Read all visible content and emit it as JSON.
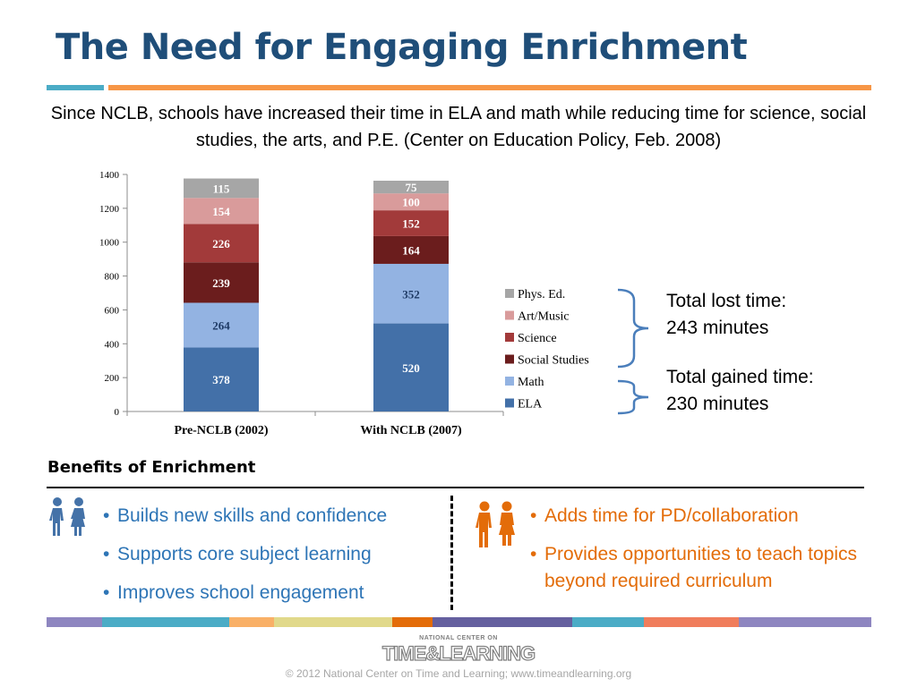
{
  "slide": {
    "title": "The Need for Engaging Enrichment",
    "subtitle": "Since NCLB, schools have increased their time in ELA and math while reducing time for science, social studies, the arts, and P.E. (Center on Education Policy, Feb. 2008)"
  },
  "chart_data": {
    "type": "bar",
    "stacked": true,
    "categories": [
      "Pre-NCLB (2002)",
      "With NCLB (2007)"
    ],
    "series": [
      {
        "name": "ELA",
        "values": [
          378,
          520
        ],
        "color": "#4370a8"
      },
      {
        "name": "Math",
        "values": [
          264,
          352
        ],
        "color": "#93b3e2"
      },
      {
        "name": "Social Studies",
        "values": [
          239,
          164
        ],
        "color": "#6b1d1d"
      },
      {
        "name": "Science",
        "values": [
          226,
          152
        ],
        "color": "#a23a3a"
      },
      {
        "name": "Art/Music",
        "values": [
          154,
          100
        ],
        "color": "#d99b9b"
      },
      {
        "name": "Phys. Ed.",
        "values": [
          115,
          75
        ],
        "color": "#a6a6a6"
      }
    ],
    "ylim": [
      0,
      1400
    ],
    "yticks": [
      0,
      200,
      400,
      600,
      800,
      1000,
      1200,
      1400
    ],
    "title": "",
    "xlabel": "",
    "ylabel": "",
    "legend_position": "right",
    "legend_order": [
      "Phys. Ed.",
      "Art/Music",
      "Science",
      "Social Studies",
      "Math",
      "ELA"
    ],
    "grid": false
  },
  "annotations": {
    "lost": {
      "line1": "Total lost time:",
      "line2": "243 minutes"
    },
    "gained": {
      "line1": "Total gained time:",
      "line2": "230 minutes"
    },
    "bracket_color": "#4a7ebb"
  },
  "benefits": {
    "heading": "Benefits of Enrichment",
    "students_icon": "students-icon",
    "teachers_icon": "teachers-icon",
    "students": [
      "Builds new skills and confidence",
      "Supports core subject learning",
      "Improves school engagement"
    ],
    "teachers": [
      "Adds time for PD/collaboration",
      "Provides opportunities to teach topics beyond required curriculum"
    ],
    "student_color": "#2e75b6",
    "teacher_color": "#e36c09"
  },
  "footer": {
    "stripe_colors": [
      "#8e86c0",
      "#4bacc6",
      "#f9b067",
      "#e1d98b",
      "#e36c09",
      "#65609f",
      "#4bacc6",
      "#f07d5c",
      "#8e86c0"
    ],
    "logo_line1": "NATIONAL CENTER ON",
    "logo_line2": "TIME&LEARNING",
    "copyright": "© 2012 National Center on Time and Learning; www.timeandlearning.org"
  }
}
